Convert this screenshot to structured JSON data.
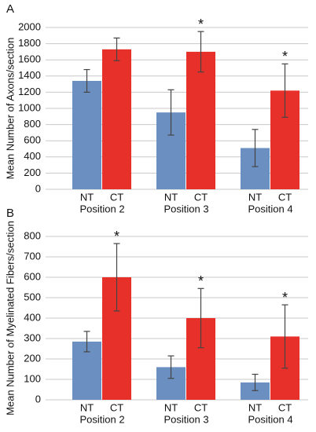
{
  "chart_data": [
    {
      "type": "bar",
      "panel": "A",
      "ylabel": "Mean Number of Axons/section",
      "categories": [
        "Position 2",
        "Position 3",
        "Position 4"
      ],
      "series": [
        {
          "name": "NT",
          "color": "#6b8fc0",
          "values": [
            1340,
            950,
            510
          ],
          "errors": [
            140,
            280,
            230
          ],
          "annotations": [
            null,
            null,
            null
          ]
        },
        {
          "name": "CT",
          "color": "#e8302a",
          "values": [
            1730,
            1700,
            1220
          ],
          "errors": [
            140,
            250,
            330
          ],
          "annotations": [
            null,
            "*",
            "*"
          ]
        }
      ],
      "ylim": [
        0,
        2000
      ],
      "yticks": [
        0,
        200,
        400,
        600,
        800,
        1000,
        1200,
        1400,
        1600,
        1800,
        2000
      ],
      "grid": true
    },
    {
      "type": "bar",
      "panel": "B",
      "ylabel": "Mean Number of Myelinated Fibers/section",
      "categories": [
        "Position 2",
        "Position 3",
        "Position 4"
      ],
      "series": [
        {
          "name": "NT",
          "color": "#6b8fc0",
          "values": [
            285,
            160,
            85
          ],
          "errors": [
            50,
            55,
            40
          ],
          "annotations": [
            null,
            null,
            null
          ]
        },
        {
          "name": "CT",
          "color": "#e8302a",
          "values": [
            600,
            400,
            310
          ],
          "errors": [
            165,
            145,
            155
          ],
          "annotations": [
            "*",
            "*",
            "*"
          ]
        }
      ],
      "ylim": [
        0,
        800
      ],
      "yticks": [
        0,
        100,
        200,
        300,
        400,
        500,
        600,
        700,
        800
      ],
      "grid": true
    }
  ]
}
